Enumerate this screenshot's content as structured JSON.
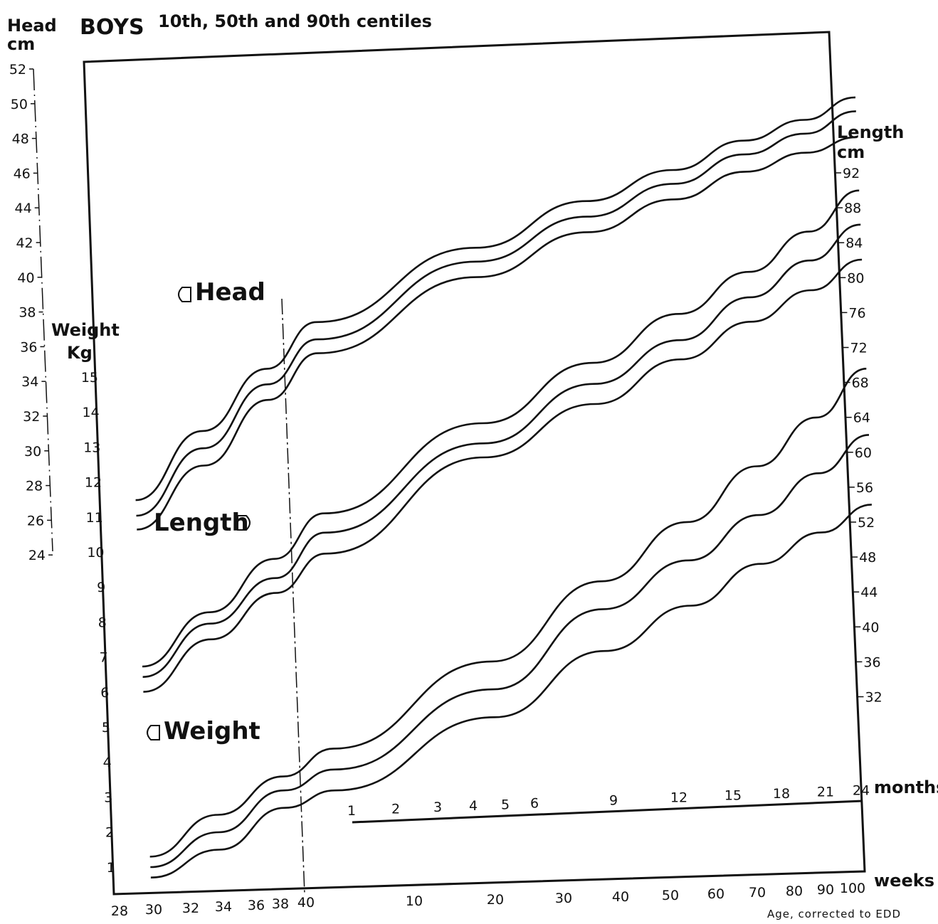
{
  "header": {
    "title": "BOYS",
    "subtitle": "10th, 50th and 90th centiles"
  },
  "axes": {
    "head": {
      "label_line1": "Head",
      "label_line2": "cm",
      "ticks": [
        "52",
        "50",
        "48",
        "46",
        "44",
        "42",
        "40",
        "38",
        "36",
        "34",
        "32",
        "30",
        "28",
        "26",
        "24"
      ]
    },
    "weight": {
      "label_line1": "Weight",
      "label_line2": "Kg",
      "ticks": [
        "15",
        "14",
        "13",
        "12",
        "11",
        "10",
        "9",
        "8",
        "7",
        "6",
        "5",
        "4",
        "3",
        "2",
        "1"
      ]
    },
    "length": {
      "label_line1": "Length",
      "label_line2": "cm",
      "ticks": [
        "92",
        "88",
        "84",
        "80",
        "76",
        "72",
        "68",
        "64",
        "60",
        "56",
        "52",
        "48",
        "44",
        "40",
        "36",
        "32"
      ]
    },
    "weeks": {
      "ticks": [
        "28",
        "30",
        "32",
        "34",
        "36",
        "38",
        "40",
        "10",
        "20",
        "30",
        "40",
        "50",
        "60",
        "70",
        "80",
        "90",
        "100"
      ],
      "unit": "weeks"
    },
    "months": {
      "ticks": [
        "1",
        "2",
        "3",
        "4",
        "5",
        "6",
        "9",
        "12",
        "15",
        "18",
        "21",
        "24"
      ],
      "unit": "months"
    },
    "footnote": "Age, corrected to EDD"
  },
  "curve_labels": {
    "head": "Head",
    "length": "Length",
    "weight": "Weight"
  },
  "chart_data": {
    "type": "line",
    "title": "BOYS",
    "subtitle": "10th, 50th and 90th centiles",
    "x_unit": "weeks (28-40 gestational, then weeks after term)",
    "x": [
      28,
      32,
      36,
      40,
      50,
      60,
      70,
      80,
      90,
      100
    ],
    "series": [
      {
        "name": "Head 90th",
        "unit": "cm",
        "values": [
          27.0,
          31.0,
          34.6,
          37.3,
          41.6,
          44.3,
          46.1,
          47.8,
          49.0,
          50.3
        ]
      },
      {
        "name": "Head 50th",
        "unit": "cm",
        "values": [
          26.1,
          30.0,
          33.7,
          36.3,
          40.8,
          43.4,
          45.3,
          47.0,
          48.2,
          49.5
        ]
      },
      {
        "name": "Head 10th",
        "unit": "cm",
        "values": [
          25.3,
          29.0,
          32.8,
          35.5,
          39.9,
          42.5,
          44.4,
          46.0,
          47.1,
          48.0
        ]
      },
      {
        "name": "Length 90th",
        "unit": "cm",
        "values": [
          35.5,
          41.7,
          47.8,
          53.0,
          63.3,
          70.2,
          75.8,
          80.6,
          85.2,
          89.9
        ]
      },
      {
        "name": "Length 50th",
        "unit": "cm",
        "values": [
          34.3,
          40.4,
          45.6,
          50.8,
          61.0,
          67.8,
          72.8,
          77.7,
          81.9,
          86.0
        ]
      },
      {
        "name": "Length 10th",
        "unit": "cm",
        "values": [
          32.6,
          38.6,
          43.9,
          48.4,
          59.4,
          65.5,
          70.6,
          74.9,
          78.5,
          82.0
        ]
      },
      {
        "name": "Weight 90th",
        "unit": "kg",
        "values": [
          1.3,
          2.5,
          3.6,
          4.4,
          6.9,
          9.2,
          10.9,
          12.5,
          13.9,
          15.3
        ]
      },
      {
        "name": "Weight 50th",
        "unit": "kg",
        "values": [
          1.0,
          2.0,
          3.2,
          3.8,
          6.1,
          8.4,
          9.8,
          11.1,
          12.3,
          13.4
        ]
      },
      {
        "name": "Weight 10th",
        "unit": "kg",
        "values": [
          0.7,
          1.5,
          2.7,
          3.2,
          5.3,
          7.2,
          8.5,
          9.7,
          10.6,
          11.4
        ]
      }
    ]
  }
}
